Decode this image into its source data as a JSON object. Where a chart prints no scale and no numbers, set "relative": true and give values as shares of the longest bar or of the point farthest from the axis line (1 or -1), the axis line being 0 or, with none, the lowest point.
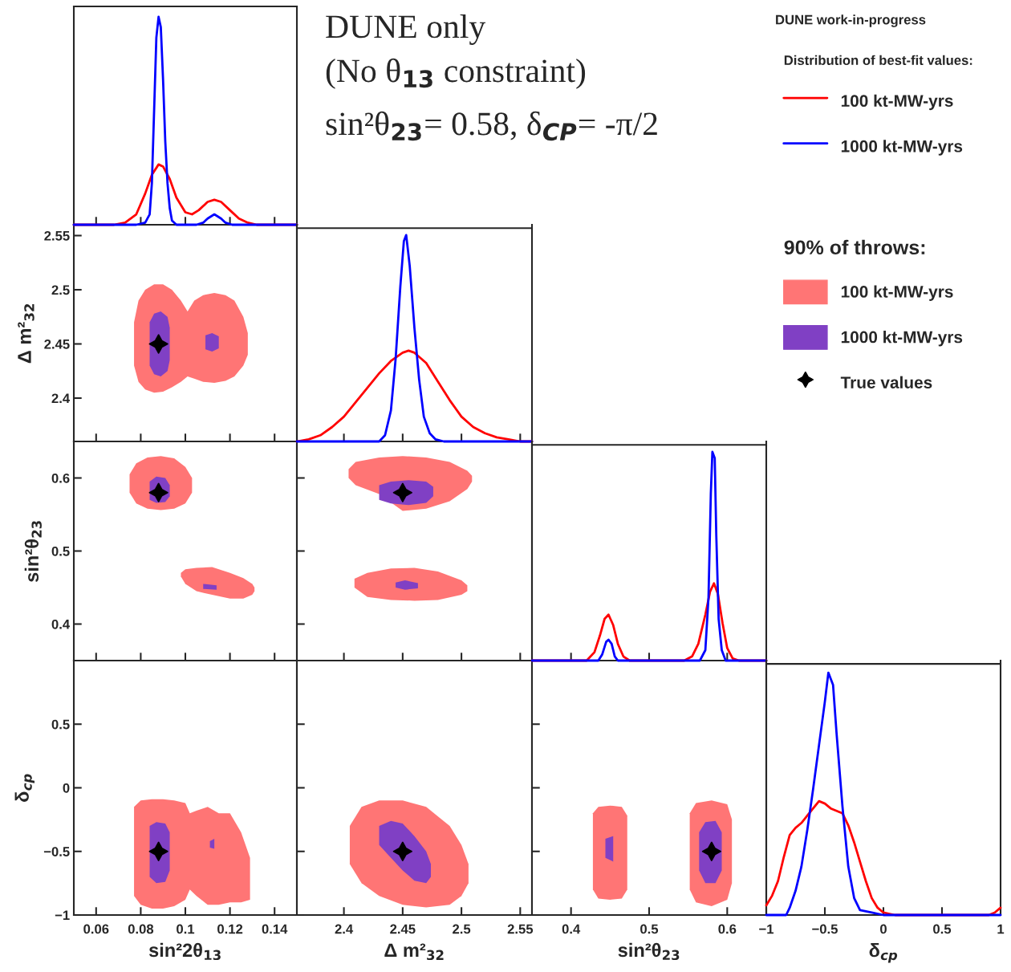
{
  "chart_data": [
    {
      "type": "line",
      "relative": true,
      "xlim": [
        0.05,
        0.15
      ],
      "xticks": [
        0.06,
        0.08,
        0.1,
        0.12,
        0.14
      ],
      "tick_labels": false,
      "legend": "right",
      "legend_title": "Distribution of best-fit values:",
      "series": [
        {
          "name": "100 kt-MW-yrs",
          "color": "#ff0000",
          "x": [
            0.05,
            0.068,
            0.073,
            0.078,
            0.082,
            0.085,
            0.088,
            0.09,
            0.093,
            0.096,
            0.1,
            0.103,
            0.106,
            0.11,
            0.113,
            0.116,
            0.12,
            0.124,
            0.128,
            0.132,
            0.15
          ],
          "values": [
            0,
            0,
            0.01,
            0.05,
            0.15,
            0.24,
            0.29,
            0.28,
            0.22,
            0.13,
            0.06,
            0.05,
            0.07,
            0.11,
            0.12,
            0.11,
            0.07,
            0.03,
            0.01,
            0,
            0
          ]
        },
        {
          "name": "1000 kt-MW-yrs",
          "color": "#0000ff",
          "x": [
            0.05,
            0.078,
            0.082,
            0.084,
            0.085,
            0.086,
            0.087,
            0.088,
            0.089,
            0.09,
            0.091,
            0.092,
            0.093,
            0.094,
            0.096,
            0.105,
            0.108,
            0.11,
            0.113,
            0.116,
            0.118,
            0.121,
            0.15
          ],
          "values": [
            0,
            0,
            0.01,
            0.05,
            0.2,
            0.55,
            0.9,
            1.0,
            0.95,
            0.7,
            0.4,
            0.2,
            0.08,
            0.02,
            0,
            0,
            0.01,
            0.03,
            0.05,
            0.03,
            0.01,
            0,
            0
          ]
        }
      ]
    },
    {
      "type": "other",
      "annotations": [
        "DUNE work-in-progress",
        "DUNE only",
        "(No θ$_{13}$ constraint)",
        "sin²θ$_{23}$= 0.58, δ$_{CP}$= -π/2"
      ]
    },
    {
      "type": "line",
      "xlim": [
        0.05,
        0.15
      ],
      "ylim": [
        2.36,
        2.56
      ],
      "xticks": [
        0.06,
        0.08,
        0.1,
        0.12,
        0.14
      ],
      "yticks": [
        2.4,
        2.45,
        2.5,
        2.55
      ],
      "ylabel": "Δ m²$_{32}$",
      "tick_labels": "y",
      "legend": "right",
      "legend_title": "90% of throws:",
      "series": [
        {
          "name": "100 kt-MW-yrs",
          "color": "#ff7575",
          "x": [
            0.077,
            0.079,
            0.082,
            0.086,
            0.09,
            0.094,
            0.098,
            0.101,
            0.104,
            0.108,
            0.113,
            0.118,
            0.122,
            0.126,
            0.128
          ],
          "values": [
            null,
            null,
            null,
            null,
            null,
            null,
            null,
            null,
            null,
            null,
            null,
            null,
            null,
            null,
            null
          ],
          "lower": [
            2.43,
            2.415,
            2.408,
            2.405,
            2.406,
            2.41,
            2.415,
            2.42,
            2.418,
            2.415,
            2.414,
            2.416,
            2.42,
            2.43,
            2.44
          ],
          "upper": [
            2.47,
            2.49,
            2.5,
            2.505,
            2.505,
            2.5,
            2.49,
            2.48,
            2.49,
            2.495,
            2.497,
            2.495,
            2.49,
            2.475,
            2.46
          ]
        },
        {
          "name": "1000 kt-MW-yrs",
          "color": "#8040c4",
          "x": [
            0.084,
            0.086,
            0.089,
            0.092,
            0.093
          ],
          "values": [
            null,
            null,
            null,
            null,
            null
          ],
          "lower": [
            2.43,
            2.422,
            2.42,
            2.425,
            2.435
          ],
          "upper": [
            2.47,
            2.478,
            2.48,
            2.475,
            2.465
          ]
        },
        {
          "color": "#8040c4",
          "x": [
            0.109,
            0.112,
            0.115
          ],
          "values": [
            null,
            null,
            null
          ],
          "lower": [
            2.445,
            2.443,
            2.446
          ],
          "upper": [
            2.458,
            2.46,
            2.457
          ]
        },
        {
          "name": "True values",
          "type": "scatter",
          "color": "#000000",
          "marker": "star",
          "x": [
            0.088
          ],
          "values": [
            2.45
          ]
        }
      ]
    },
    {
      "type": "line",
      "relative": true,
      "xlim": [
        2.36,
        2.56
      ],
      "xticks": [
        2.4,
        2.45,
        2.5,
        2.55
      ],
      "tick_labels": false,
      "series": [
        {
          "color": "#ff0000",
          "x": [
            2.36,
            2.37,
            2.38,
            2.39,
            2.4,
            2.41,
            2.42,
            2.43,
            2.44,
            2.45,
            2.455,
            2.46,
            2.47,
            2.48,
            2.49,
            2.5,
            2.51,
            2.52,
            2.53,
            2.54,
            2.55,
            2.56
          ],
          "values": [
            0,
            0.01,
            0.03,
            0.07,
            0.12,
            0.19,
            0.26,
            0.33,
            0.39,
            0.43,
            0.44,
            0.43,
            0.38,
            0.29,
            0.2,
            0.12,
            0.07,
            0.04,
            0.02,
            0.01,
            0,
            0
          ]
        },
        {
          "color": "#0000ff",
          "x": [
            2.36,
            2.43,
            2.435,
            2.44,
            2.444,
            2.448,
            2.451,
            2.453,
            2.456,
            2.46,
            2.464,
            2.468,
            2.473,
            2.478,
            2.485,
            2.56
          ],
          "values": [
            0,
            0,
            0.03,
            0.15,
            0.4,
            0.75,
            0.97,
            1.0,
            0.85,
            0.55,
            0.3,
            0.12,
            0.04,
            0.01,
            0,
            0
          ]
        }
      ]
    },
    {
      "type": "line",
      "xlim": [
        0.05,
        0.15
      ],
      "ylim": [
        0.35,
        0.65
      ],
      "xticks": [
        0.06,
        0.08,
        0.1,
        0.12,
        0.14
      ],
      "yticks": [
        0.4,
        0.5,
        0.6
      ],
      "ylabel": "sin²θ$_{23}$",
      "tick_labels": "y",
      "series": [
        {
          "color": "#ff7575",
          "x": [
            0.075,
            0.078,
            0.083,
            0.089,
            0.095,
            0.1,
            0.103
          ],
          "values": [
            null,
            null,
            null,
            null,
            null,
            null,
            null
          ],
          "lower": [
            0.58,
            0.565,
            0.558,
            0.556,
            0.558,
            0.565,
            0.58
          ],
          "upper": [
            0.605,
            0.62,
            0.628,
            0.63,
            0.627,
            0.615,
            0.6
          ]
        },
        {
          "color": "#ff7575",
          "x": [
            0.098,
            0.1,
            0.105,
            0.112,
            0.12,
            0.126,
            0.13,
            0.131
          ],
          "values": [
            null,
            null,
            null,
            null,
            null,
            null,
            null,
            null
          ],
          "lower": [
            0.465,
            0.455,
            0.445,
            0.44,
            0.435,
            0.435,
            0.44,
            0.445
          ],
          "upper": [
            0.47,
            0.475,
            0.477,
            0.478,
            0.47,
            0.463,
            0.455,
            0.45
          ]
        },
        {
          "color": "#8040c4",
          "x": [
            0.084,
            0.087,
            0.091,
            0.093
          ],
          "values": [
            null,
            null,
            null,
            null
          ],
          "lower": [
            0.57,
            0.566,
            0.567,
            0.575
          ],
          "upper": [
            0.595,
            0.602,
            0.6,
            0.59
          ]
        },
        {
          "color": "#8040c4",
          "x": [
            0.108,
            0.114
          ],
          "values": [
            null,
            null
          ],
          "lower": [
            0.448,
            0.447
          ],
          "upper": [
            0.455,
            0.453
          ]
        },
        {
          "type": "scatter",
          "color": "#000000",
          "marker": "star",
          "x": [
            0.088
          ],
          "values": [
            0.58
          ]
        }
      ]
    },
    {
      "type": "line",
      "xlim": [
        2.36,
        2.56
      ],
      "ylim": [
        0.35,
        0.65
      ],
      "xticks": [
        2.4,
        2.45,
        2.5,
        2.55
      ],
      "yticks": [
        0.4,
        0.5,
        0.6
      ],
      "tick_labels": false,
      "series": [
        {
          "color": "#ff7575",
          "x": [
            2.404,
            2.41,
            2.43,
            2.45,
            2.47,
            2.49,
            2.505,
            2.509
          ],
          "values": [
            null,
            null,
            null,
            null,
            null,
            null,
            null,
            null
          ],
          "lower": [
            0.6,
            0.59,
            0.578,
            0.555,
            0.558,
            0.568,
            0.585,
            0.595
          ],
          "upper": [
            0.612,
            0.622,
            0.628,
            0.63,
            0.628,
            0.622,
            0.61,
            0.603
          ]
        },
        {
          "color": "#ff7575",
          "x": [
            2.409,
            2.42,
            2.44,
            2.46,
            2.48,
            2.5,
            2.505
          ],
          "values": [
            null,
            null,
            null,
            null,
            null,
            null,
            null
          ],
          "lower": [
            0.45,
            0.437,
            0.433,
            0.432,
            0.433,
            0.44,
            0.445
          ],
          "upper": [
            0.462,
            0.47,
            0.476,
            0.477,
            0.472,
            0.46,
            0.453
          ]
        },
        {
          "color": "#8040c4",
          "x": [
            2.43,
            2.44,
            2.455,
            2.47,
            2.476
          ],
          "values": [
            null,
            null,
            null,
            null,
            null
          ],
          "lower": [
            0.57,
            0.565,
            0.563,
            0.566,
            0.575
          ],
          "upper": [
            0.59,
            0.595,
            0.597,
            0.595,
            0.588
          ]
        },
        {
          "color": "#8040c4",
          "x": [
            2.444,
            2.452,
            2.463
          ],
          "values": [
            null,
            null,
            null
          ],
          "lower": [
            0.45,
            0.447,
            0.449
          ],
          "upper": [
            0.457,
            0.46,
            0.456
          ]
        },
        {
          "type": "scatter",
          "color": "#000000",
          "marker": "star",
          "x": [
            2.45
          ],
          "values": [
            0.58
          ]
        }
      ]
    },
    {
      "type": "line",
      "relative": true,
      "xlim": [
        0.35,
        0.65
      ],
      "xticks": [
        0.4,
        0.5,
        0.6
      ],
      "tick_labels": false,
      "series": [
        {
          "color": "#ff0000",
          "x": [
            0.35,
            0.42,
            0.43,
            0.437,
            0.443,
            0.448,
            0.454,
            0.46,
            0.467,
            0.475,
            0.545,
            0.555,
            0.563,
            0.572,
            0.578,
            0.583,
            0.588,
            0.594,
            0.6,
            0.607,
            0.615,
            0.65
          ],
          "values": [
            0,
            0,
            0.04,
            0.12,
            0.2,
            0.22,
            0.17,
            0.08,
            0.02,
            0,
            0,
            0.02,
            0.08,
            0.22,
            0.33,
            0.37,
            0.32,
            0.18,
            0.06,
            0.01,
            0,
            0
          ]
        },
        {
          "color": "#0000ff",
          "x": [
            0.35,
            0.435,
            0.44,
            0.445,
            0.448,
            0.452,
            0.456,
            0.46,
            0.565,
            0.572,
            0.576,
            0.579,
            0.581,
            0.584,
            0.586,
            0.589,
            0.593,
            0.598,
            0.65
          ],
          "values": [
            0,
            0,
            0.03,
            0.09,
            0.1,
            0.08,
            0.02,
            0,
            0,
            0.05,
            0.3,
            0.8,
            1.0,
            0.97,
            0.6,
            0.2,
            0.05,
            0,
            0
          ]
        }
      ]
    },
    {
      "type": "line",
      "xlim": [
        0.05,
        0.15
      ],
      "ylim": [
        -1,
        1
      ],
      "xticks": [
        0.06,
        0.08,
        0.1,
        0.12,
        0.14
      ],
      "yticks": [
        {
          "value": -1,
          "label": "−1"
        },
        {
          "value": -0.5,
          "label": "−0.5"
        },
        0,
        0.5
      ],
      "xlabel": "sin²2θ$_{13}$",
      "ylabel": "δ$_{cp}$",
      "series": [
        {
          "color": "#ff7575",
          "x": [
            0.077,
            0.08,
            0.085,
            0.09,
            0.095,
            0.1,
            0.102,
            0.105,
            0.11,
            0.115,
            0.12,
            0.125,
            0.129
          ],
          "values": [
            null,
            null,
            null,
            null,
            null,
            null,
            null,
            null,
            null,
            null,
            null,
            null,
            null
          ],
          "lower": [
            -0.85,
            -0.92,
            -0.95,
            -0.95,
            -0.93,
            -0.88,
            -0.8,
            -0.85,
            -0.92,
            -0.92,
            -0.9,
            -0.9,
            -0.88
          ],
          "upper": [
            -0.15,
            -0.1,
            -0.09,
            -0.09,
            -0.1,
            -0.12,
            -0.2,
            -0.18,
            -0.15,
            -0.2,
            -0.2,
            -0.35,
            -0.55
          ]
        },
        {
          "color": "#8040c4",
          "x": [
            0.084,
            0.087,
            0.091,
            0.093
          ],
          "values": [
            null,
            null,
            null,
            null
          ],
          "lower": [
            -0.7,
            -0.75,
            -0.74,
            -0.65
          ],
          "upper": [
            -0.3,
            -0.27,
            -0.28,
            -0.35
          ]
        },
        {
          "color": "#8040c4",
          "x": [
            0.111,
            0.113
          ],
          "values": [
            null,
            null
          ],
          "lower": [
            -0.47,
            -0.48
          ],
          "upper": [
            -0.42,
            -0.4
          ]
        },
        {
          "type": "scatter",
          "color": "#000000",
          "marker": "star",
          "x": [
            0.088
          ],
          "values": [
            -0.5
          ]
        }
      ]
    },
    {
      "type": "line",
      "xlim": [
        2.36,
        2.56
      ],
      "ylim": [
        -1,
        1
      ],
      "xticks": [
        2.4,
        2.45,
        2.5,
        2.55
      ],
      "yticks": [
        -1,
        -0.5,
        0,
        0.5
      ],
      "xlabel": "Δ m²$_{32}$",
      "tick_labels": "x",
      "series": [
        {
          "color": "#ff7575",
          "x": [
            2.405,
            2.415,
            2.43,
            2.45,
            2.47,
            2.49,
            2.5,
            2.506
          ],
          "values": [
            null,
            null,
            null,
            null,
            null,
            null,
            null,
            null
          ],
          "lower": [
            -0.6,
            -0.75,
            -0.85,
            -0.92,
            -0.94,
            -0.92,
            -0.85,
            -0.75
          ],
          "upper": [
            -0.3,
            -0.15,
            -0.1,
            -0.1,
            -0.15,
            -0.3,
            -0.45,
            -0.6
          ]
        },
        {
          "color": "#8040c4",
          "x": [
            2.43,
            2.44,
            2.45,
            2.46,
            2.47,
            2.474
          ],
          "values": [
            null,
            null,
            null,
            null,
            null,
            null
          ],
          "lower": [
            -0.45,
            -0.55,
            -0.65,
            -0.73,
            -0.75,
            -0.7
          ],
          "upper": [
            -0.3,
            -0.26,
            -0.28,
            -0.38,
            -0.5,
            -0.6
          ]
        },
        {
          "type": "scatter",
          "color": "#000000",
          "marker": "star",
          "x": [
            2.45
          ],
          "values": [
            -0.5
          ]
        }
      ]
    },
    {
      "type": "line",
      "xlim": [
        0.35,
        0.65
      ],
      "ylim": [
        -1,
        1
      ],
      "xticks": [
        0.4,
        0.5,
        0.6
      ],
      "yticks": [
        -1,
        -0.5,
        0,
        0.5
      ],
      "xlabel": "sin²θ$_{23}$",
      "tick_labels": "x",
      "series": [
        {
          "color": "#ff7575",
          "x": [
            0.428,
            0.435,
            0.45,
            0.465,
            0.472
          ],
          "values": [
            null,
            null,
            null,
            null,
            null
          ],
          "lower": [
            -0.8,
            -0.87,
            -0.88,
            -0.87,
            -0.8
          ],
          "upper": [
            -0.2,
            -0.15,
            -0.14,
            -0.15,
            -0.22
          ]
        },
        {
          "color": "#ff7575",
          "x": [
            0.552,
            0.56,
            0.58,
            0.6,
            0.606
          ],
          "values": [
            null,
            null,
            null,
            null,
            null
          ],
          "lower": [
            -0.8,
            -0.9,
            -0.93,
            -0.88,
            -0.75
          ],
          "upper": [
            -0.2,
            -0.12,
            -0.1,
            -0.13,
            -0.25
          ]
        },
        {
          "color": "#8040c4",
          "x": [
            0.444,
            0.454
          ],
          "values": [
            null,
            null
          ],
          "lower": [
            -0.55,
            -0.58
          ],
          "upper": [
            -0.4,
            -0.38
          ]
        },
        {
          "color": "#8040c4",
          "x": [
            0.564,
            0.572,
            0.585,
            0.593
          ],
          "values": [
            null,
            null,
            null,
            null
          ],
          "lower": [
            -0.65,
            -0.75,
            -0.75,
            -0.65
          ],
          "upper": [
            -0.35,
            -0.27,
            -0.26,
            -0.35
          ]
        },
        {
          "type": "scatter",
          "color": "#000000",
          "marker": "star",
          "x": [
            0.58
          ],
          "values": [
            -0.5
          ]
        }
      ]
    },
    {
      "type": "line",
      "relative": true,
      "xlim": [
        -1,
        1
      ],
      "xticks": [
        {
          "value": -1,
          "label": "−1"
        },
        {
          "value": -0.5,
          "label": "−0.5"
        },
        0,
        0.5,
        1
      ],
      "xlabel": "δ$_{cp}$",
      "tick_labels": "x",
      "series": [
        {
          "color": "#ff0000",
          "x": [
            -1,
            -0.95,
            -0.9,
            -0.85,
            -0.8,
            -0.75,
            -0.7,
            -0.65,
            -0.6,
            -0.55,
            -0.5,
            -0.45,
            -0.4,
            -0.35,
            -0.3,
            -0.25,
            -0.2,
            -0.15,
            -0.1,
            -0.05,
            0,
            0.05,
            0.1,
            0.9,
            0.95,
            1
          ],
          "values": [
            0.04,
            0.08,
            0.14,
            0.24,
            0.33,
            0.36,
            0.38,
            0.41,
            0.44,
            0.47,
            0.46,
            0.44,
            0.43,
            0.42,
            0.37,
            0.3,
            0.22,
            0.14,
            0.07,
            0.03,
            0.01,
            0.005,
            0,
            0,
            0.01,
            0.03
          ]
        },
        {
          "color": "#0000ff",
          "x": [
            -1,
            -0.83,
            -0.8,
            -0.75,
            -0.7,
            -0.65,
            -0.6,
            -0.55,
            -0.5,
            -0.47,
            -0.43,
            -0.4,
            -0.35,
            -0.3,
            -0.25,
            -0.2,
            -0.1,
            0,
            1
          ],
          "values": [
            0,
            0,
            0.03,
            0.1,
            0.2,
            0.35,
            0.52,
            0.7,
            0.88,
            1.0,
            0.95,
            0.75,
            0.45,
            0.2,
            0.07,
            0.02,
            0.01,
            0,
            0
          ]
        }
      ]
    }
  ]
}
